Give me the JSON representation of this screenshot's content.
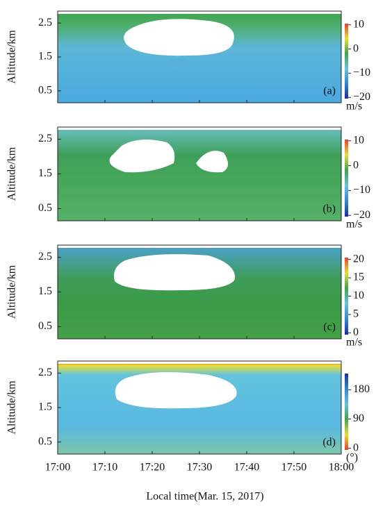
{
  "chart_data": [
    {
      "type": "heatmap",
      "ylabel": "Altitude/km",
      "ylim": [
        0.15,
        2.85
      ],
      "yticks": [
        0.5,
        1.5,
        2.5
      ],
      "panel_label": "(a)",
      "colorbar": {
        "lim": [
          -20.5,
          10.5
        ],
        "ticks": [
          10,
          0,
          {
            "value": -10,
            "label": "−10"
          },
          {
            "value": -20,
            "label": "−20"
          }
        ],
        "unit": "m/s",
        "colors": [
          "#1b2f9c",
          "#2f86d3",
          "#62c3dc",
          "#3ea34b",
          "#e6df3a",
          "#e3402a"
        ]
      }
    },
    {
      "type": "heatmap",
      "ylabel": "Altitude/km",
      "ylim": [
        0.15,
        2.85
      ],
      "yticks": [
        0.5,
        1.5,
        2.5
      ],
      "panel_label": "(b)",
      "colorbar": {
        "lim": [
          -20.5,
          10.5
        ],
        "ticks": [
          10,
          0,
          {
            "value": -10,
            "label": "−10"
          },
          {
            "value": -20,
            "label": "−20"
          }
        ],
        "unit": "m/s",
        "colors": [
          "#1b2f9c",
          "#2f86d3",
          "#62c3dc",
          "#3ea34b",
          "#e6df3a",
          "#e3402a"
        ]
      }
    },
    {
      "type": "heatmap",
      "ylabel": "Altitude/km",
      "ylim": [
        0.15,
        2.85
      ],
      "yticks": [
        0.5,
        1.5,
        2.5
      ],
      "panel_label": "(c)",
      "colorbar": {
        "lim": [
          -0.5,
          20.5
        ],
        "ticks": [
          20,
          15,
          10,
          5,
          0
        ],
        "unit": "m/s",
        "colors": [
          "#1b2f9c",
          "#2f86d3",
          "#62c3dc",
          "#3ea34b",
          "#e6df3a",
          "#e3402a"
        ]
      }
    },
    {
      "type": "heatmap",
      "ylabel": "Altitude/km",
      "ylim": [
        0.15,
        2.85
      ],
      "yticks": [
        0.5,
        1.5,
        2.5
      ],
      "panel_label": "(d)",
      "colorbar": {
        "lim": [
          -5,
          230
        ],
        "ticks": [
          180,
          90,
          0
        ],
        "unit": "(°)",
        "colors": [
          "#e3402a",
          "#e6df3a",
          "#3ea34b",
          "#62c3dc",
          "#2f86d3",
          "#1b2f9c"
        ]
      }
    }
  ],
  "x_axis": {
    "ticks": [
      "17:00",
      "17:10",
      "17:20",
      "17:30",
      "17:40",
      "17:50",
      "18:00"
    ],
    "label": "Local time(Mar. 15, 2017)"
  }
}
